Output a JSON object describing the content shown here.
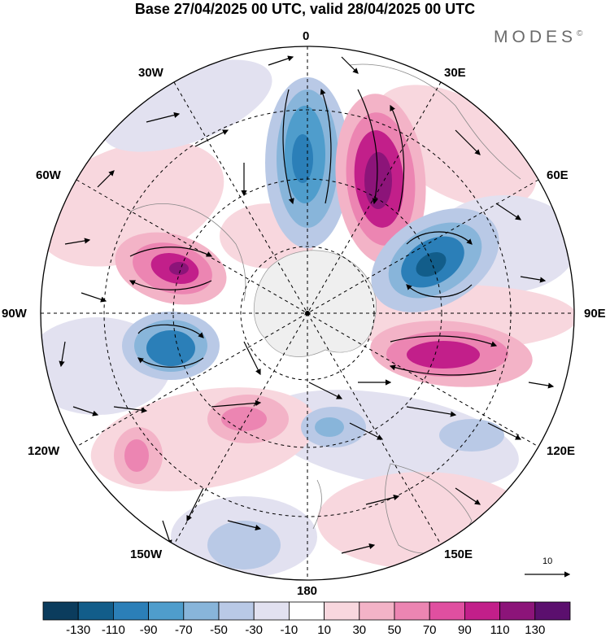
{
  "header": {
    "title": "Base 27/04/2025 00 UTC, valid 28/04/2025 00 UTC",
    "brand": "MODES",
    "brand_mark": "©"
  },
  "map": {
    "projection": "south-polar-stereographic",
    "longitude_labels": {
      "top": "0",
      "top_right": "30E",
      "upper_right": "60E",
      "right": "90E",
      "lower_right": "120E",
      "bottom_right": "150E",
      "bottom": "180",
      "bottom_left": "150W",
      "lower_left": "120W",
      "left": "90W",
      "upper_left": "60W",
      "top_left": "30W"
    },
    "vector_scale_label": "10",
    "anomaly_centres": [
      {
        "sign": "negative",
        "intensity": "strong",
        "sector": "0-20W"
      },
      {
        "sign": "positive",
        "intensity": "strong",
        "sector": "20E-30E"
      },
      {
        "sign": "negative",
        "intensity": "strong",
        "sector": "50E-60E"
      },
      {
        "sign": "positive",
        "intensity": "strong",
        "sector": "100E-110E"
      },
      {
        "sign": "positive",
        "intensity": "strong",
        "sector": "70W-80W"
      },
      {
        "sign": "negative",
        "intensity": "strong",
        "sector": "100W-110W"
      },
      {
        "sign": "positive",
        "intensity": "moderate",
        "sector": "140W-150W"
      },
      {
        "sign": "negative",
        "intensity": "moderate",
        "sector": "160E-170E"
      }
    ]
  },
  "colorbar": {
    "colors": [
      "#0b3c5d",
      "#125d8a",
      "#2b7fb8",
      "#4f9dcc",
      "#88b5da",
      "#b9c9e6",
      "#e2e1f0",
      "#ffffff",
      "#f8d7de",
      "#f3b3c7",
      "#ec85b2",
      "#e04fa0",
      "#c21f8a",
      "#8c1479",
      "#5b0f6e"
    ],
    "labels": [
      "-130",
      "-110",
      "-90",
      "-70",
      "-50",
      "-30",
      "-10",
      "10",
      "30",
      "50",
      "70",
      "90",
      "110",
      "130"
    ]
  }
}
